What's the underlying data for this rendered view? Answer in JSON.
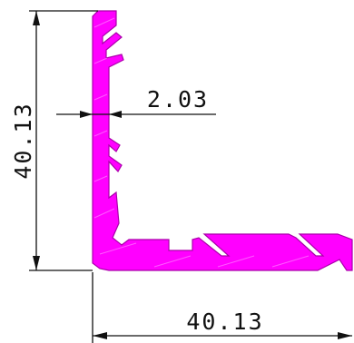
{
  "drawing": {
    "profile_color": "#ff00ff",
    "outline_color": "#aa00aa",
    "line_color": "#111111",
    "dimensions": {
      "height": "40.13",
      "width": "40.13",
      "wall_thickness": "2.03"
    }
  }
}
